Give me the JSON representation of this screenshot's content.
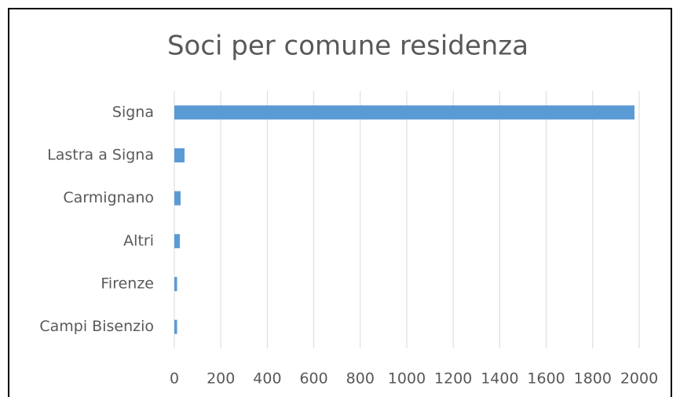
{
  "chart_data": {
    "type": "bar",
    "orientation": "horizontal",
    "title": "Soci per comune residenza",
    "categories": [
      "Signa",
      "Lastra a Signa",
      "Carmignano",
      "Altri",
      "Firenze",
      "Campi Bisenzio"
    ],
    "values": [
      1980,
      44,
      27,
      24,
      12,
      12
    ],
    "color": "#5b9bd5",
    "xlim": [
      0,
      2000
    ],
    "xticks": [
      0,
      200,
      400,
      600,
      800,
      1000,
      1200,
      1400,
      1600,
      1800,
      2000
    ],
    "grid": true
  }
}
